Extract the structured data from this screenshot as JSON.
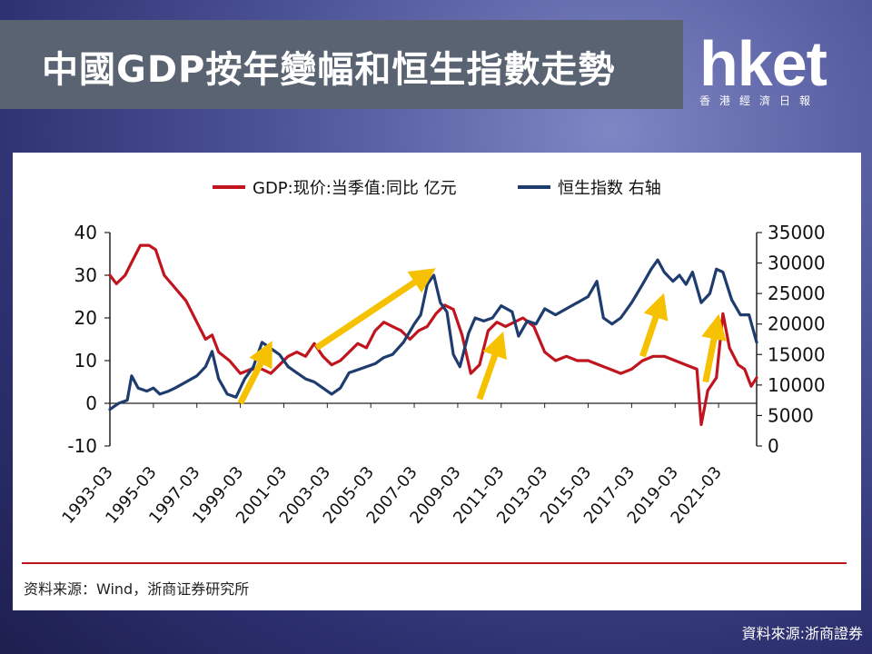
{
  "header": {
    "title": "中國GDP按年變幅和恒生指數走勢",
    "logo_text": "hket",
    "logo_subtitle": "香港經濟日報"
  },
  "footer": {
    "source_in_chart": "资料来源：Wind，浙商证券研究所",
    "source_note": "資料來源:浙商證券"
  },
  "colors": {
    "gdp": "#c0151f",
    "hsi": "#1f3c6e",
    "arrow": "#f6c100",
    "rule": "#c0151f"
  },
  "chart_data": {
    "type": "line",
    "x": [
      "1993-03",
      "1995-03",
      "1997-03",
      "1999-03",
      "2001-03",
      "2003-03",
      "2005-03",
      "2007-03",
      "2009-03",
      "2011-03",
      "2013-03",
      "2015-03",
      "2017-03",
      "2019-03",
      "2021-03"
    ],
    "x_range": [
      1993.0,
      2022.75
    ],
    "ylim_left": [
      -10,
      40
    ],
    "yticks_left": [
      "40",
      "30",
      "20",
      "10",
      "0",
      "-10"
    ],
    "ylim_right": [
      0,
      35000
    ],
    "yticks_right": [
      "35000",
      "30000",
      "25000",
      "20000",
      "15000",
      "10000",
      "5000",
      "0"
    ],
    "legend_position": "top",
    "series": [
      {
        "name": "GDP:现价:当季值:同比 亿元",
        "axis": "left",
        "points": [
          [
            1993.0,
            30
          ],
          [
            1993.3,
            28
          ],
          [
            1993.7,
            30
          ],
          [
            1994.0,
            33
          ],
          [
            1994.4,
            37
          ],
          [
            1994.8,
            37
          ],
          [
            1995.1,
            36
          ],
          [
            1995.5,
            30
          ],
          [
            1996.0,
            27
          ],
          [
            1996.5,
            24
          ],
          [
            1997.0,
            19
          ],
          [
            1997.4,
            15
          ],
          [
            1997.7,
            16
          ],
          [
            1998.0,
            12
          ],
          [
            1998.5,
            10
          ],
          [
            1999.0,
            7
          ],
          [
            1999.5,
            8
          ],
          [
            2000.0,
            8
          ],
          [
            2000.4,
            7
          ],
          [
            2000.8,
            9
          ],
          [
            2001.2,
            11
          ],
          [
            2001.6,
            12
          ],
          [
            2002.0,
            11
          ],
          [
            2002.4,
            14
          ],
          [
            2002.8,
            11
          ],
          [
            2003.2,
            9
          ],
          [
            2003.6,
            10
          ],
          [
            2004.0,
            12
          ],
          [
            2004.4,
            14
          ],
          [
            2004.8,
            13
          ],
          [
            2005.2,
            17
          ],
          [
            2005.6,
            19
          ],
          [
            2006.0,
            18
          ],
          [
            2006.4,
            17
          ],
          [
            2006.8,
            15
          ],
          [
            2007.2,
            17
          ],
          [
            2007.6,
            18
          ],
          [
            2008.0,
            21
          ],
          [
            2008.4,
            23
          ],
          [
            2008.8,
            22
          ],
          [
            2009.2,
            16
          ],
          [
            2009.6,
            7
          ],
          [
            2010.0,
            9
          ],
          [
            2010.4,
            17
          ],
          [
            2010.8,
            19
          ],
          [
            2011.2,
            18
          ],
          [
            2011.6,
            19
          ],
          [
            2012.0,
            20
          ],
          [
            2012.5,
            18
          ],
          [
            2013.0,
            12
          ],
          [
            2013.5,
            10
          ],
          [
            2014.0,
            11
          ],
          [
            2014.5,
            10
          ],
          [
            2015.0,
            10
          ],
          [
            2015.5,
            9
          ],
          [
            2016.0,
            8
          ],
          [
            2016.5,
            7
          ],
          [
            2017.0,
            8
          ],
          [
            2017.5,
            10
          ],
          [
            2018.0,
            11
          ],
          [
            2018.5,
            11
          ],
          [
            2019.0,
            10
          ],
          [
            2019.5,
            9
          ],
          [
            2020.0,
            8
          ],
          [
            2020.2,
            -5
          ],
          [
            2020.5,
            3
          ],
          [
            2020.9,
            6
          ],
          [
            2021.2,
            21
          ],
          [
            2021.5,
            13
          ],
          [
            2021.9,
            9
          ],
          [
            2022.2,
            8
          ],
          [
            2022.5,
            4
          ],
          [
            2022.75,
            6
          ]
        ]
      },
      {
        "name": "恒生指数 右轴",
        "axis": "right",
        "points": [
          [
            1993.0,
            6000
          ],
          [
            1993.4,
            7000
          ],
          [
            1993.8,
            7500
          ],
          [
            1994.0,
            11500
          ],
          [
            1994.3,
            9500
          ],
          [
            1994.7,
            9000
          ],
          [
            1995.0,
            9500
          ],
          [
            1995.3,
            8500
          ],
          [
            1995.7,
            9000
          ],
          [
            1996.0,
            9500
          ],
          [
            1996.5,
            10500
          ],
          [
            1997.0,
            11500
          ],
          [
            1997.4,
            13000
          ],
          [
            1997.7,
            15500
          ],
          [
            1998.0,
            11000
          ],
          [
            1998.4,
            8500
          ],
          [
            1998.8,
            8000
          ],
          [
            1999.2,
            11000
          ],
          [
            1999.6,
            13000
          ],
          [
            2000.0,
            17000
          ],
          [
            2000.4,
            16000
          ],
          [
            2000.8,
            15000
          ],
          [
            2001.2,
            13000
          ],
          [
            2001.6,
            12000
          ],
          [
            2002.0,
            11000
          ],
          [
            2002.4,
            10500
          ],
          [
            2002.8,
            9500
          ],
          [
            2003.2,
            8500
          ],
          [
            2003.6,
            9500
          ],
          [
            2004.0,
            12000
          ],
          [
            2004.4,
            12500
          ],
          [
            2004.8,
            13000
          ],
          [
            2005.2,
            13500
          ],
          [
            2005.6,
            14500
          ],
          [
            2006.0,
            15000
          ],
          [
            2006.5,
            17000
          ],
          [
            2007.0,
            20000
          ],
          [
            2007.3,
            21500
          ],
          [
            2007.6,
            26500
          ],
          [
            2007.9,
            28000
          ],
          [
            2008.2,
            23500
          ],
          [
            2008.5,
            22000
          ],
          [
            2008.8,
            15000
          ],
          [
            2009.1,
            13000
          ],
          [
            2009.5,
            18500
          ],
          [
            2009.8,
            21000
          ],
          [
            2010.2,
            20500
          ],
          [
            2010.6,
            21000
          ],
          [
            2011.0,
            23000
          ],
          [
            2011.5,
            22000
          ],
          [
            2011.8,
            18000
          ],
          [
            2012.2,
            20500
          ],
          [
            2012.6,
            20000
          ],
          [
            2013.0,
            22500
          ],
          [
            2013.5,
            21500
          ],
          [
            2014.0,
            22500
          ],
          [
            2014.5,
            23500
          ],
          [
            2015.0,
            24500
          ],
          [
            2015.4,
            27000
          ],
          [
            2015.7,
            21000
          ],
          [
            2016.1,
            20000
          ],
          [
            2016.5,
            21000
          ],
          [
            2017.0,
            23500
          ],
          [
            2017.5,
            26500
          ],
          [
            2017.9,
            29000
          ],
          [
            2018.2,
            30500
          ],
          [
            2018.5,
            28500
          ],
          [
            2018.9,
            27000
          ],
          [
            2019.2,
            28000
          ],
          [
            2019.5,
            26500
          ],
          [
            2019.8,
            28500
          ],
          [
            2020.2,
            23500
          ],
          [
            2020.6,
            25000
          ],
          [
            2020.9,
            29000
          ],
          [
            2021.2,
            28500
          ],
          [
            2021.6,
            24000
          ],
          [
            2022.0,
            21500
          ],
          [
            2022.4,
            21500
          ],
          [
            2022.75,
            17000
          ]
        ]
      }
    ],
    "annotations": [
      {
        "type": "arrow",
        "from": [
          1999.0,
          0
        ],
        "to": [
          2000.2,
          12
        ]
      },
      {
        "type": "arrow",
        "from": [
          2002.5,
          13
        ],
        "to": [
          2007.5,
          30
        ]
      },
      {
        "type": "arrow",
        "from": [
          2010.0,
          1
        ],
        "to": [
          2010.9,
          14
        ]
      },
      {
        "type": "arrow",
        "from": [
          2017.5,
          11
        ],
        "to": [
          2018.3,
          23
        ]
      },
      {
        "type": "arrow",
        "from": [
          2020.4,
          5
        ],
        "to": [
          2020.9,
          18
        ]
      }
    ]
  }
}
